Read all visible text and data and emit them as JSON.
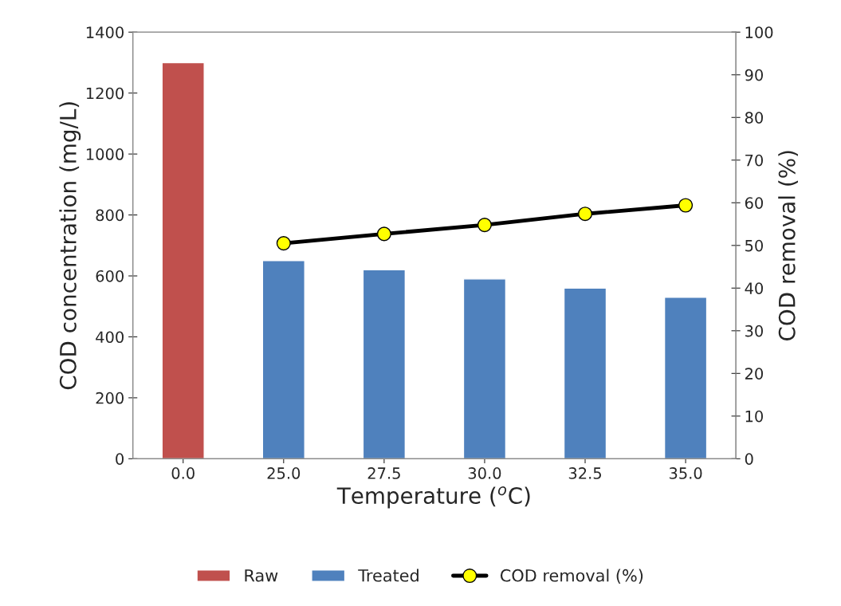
{
  "chart_data": {
    "type": "bar",
    "xlabel": "Temperature ($^{o}$C)",
    "ylabel": "COD concentration (mg/L)",
    "y2label": "COD removal (%)",
    "categories": [
      "0.0",
      "25.0",
      "27.5",
      "30.0",
      "32.5",
      "35.0"
    ],
    "series": [
      {
        "name": "Raw",
        "color": "#c0504d",
        "values": [
          1300,
          null,
          null,
          null,
          null,
          null
        ]
      },
      {
        "name": "Treated",
        "color": "#4f81bd",
        "values": [
          null,
          650,
          620,
          590,
          560,
          530
        ]
      },
      {
        "name": "COD removal (%)",
        "type": "line",
        "axis": "y2",
        "color": "#000000",
        "values": [
          null,
          50.5,
          52.7,
          54.8,
          57.4,
          59.4
        ]
      }
    ],
    "ylim": [
      0,
      1400
    ],
    "yticks": [
      0,
      200,
      400,
      600,
      800,
      1000,
      1200,
      1400
    ],
    "y2lim": [
      0,
      100
    ],
    "y2ticks": [
      0,
      10,
      20,
      30,
      40,
      50,
      60,
      70,
      80,
      90,
      100
    ],
    "marker": "circle",
    "line_style": "solid",
    "legend": "bottom",
    "grid": false
  }
}
